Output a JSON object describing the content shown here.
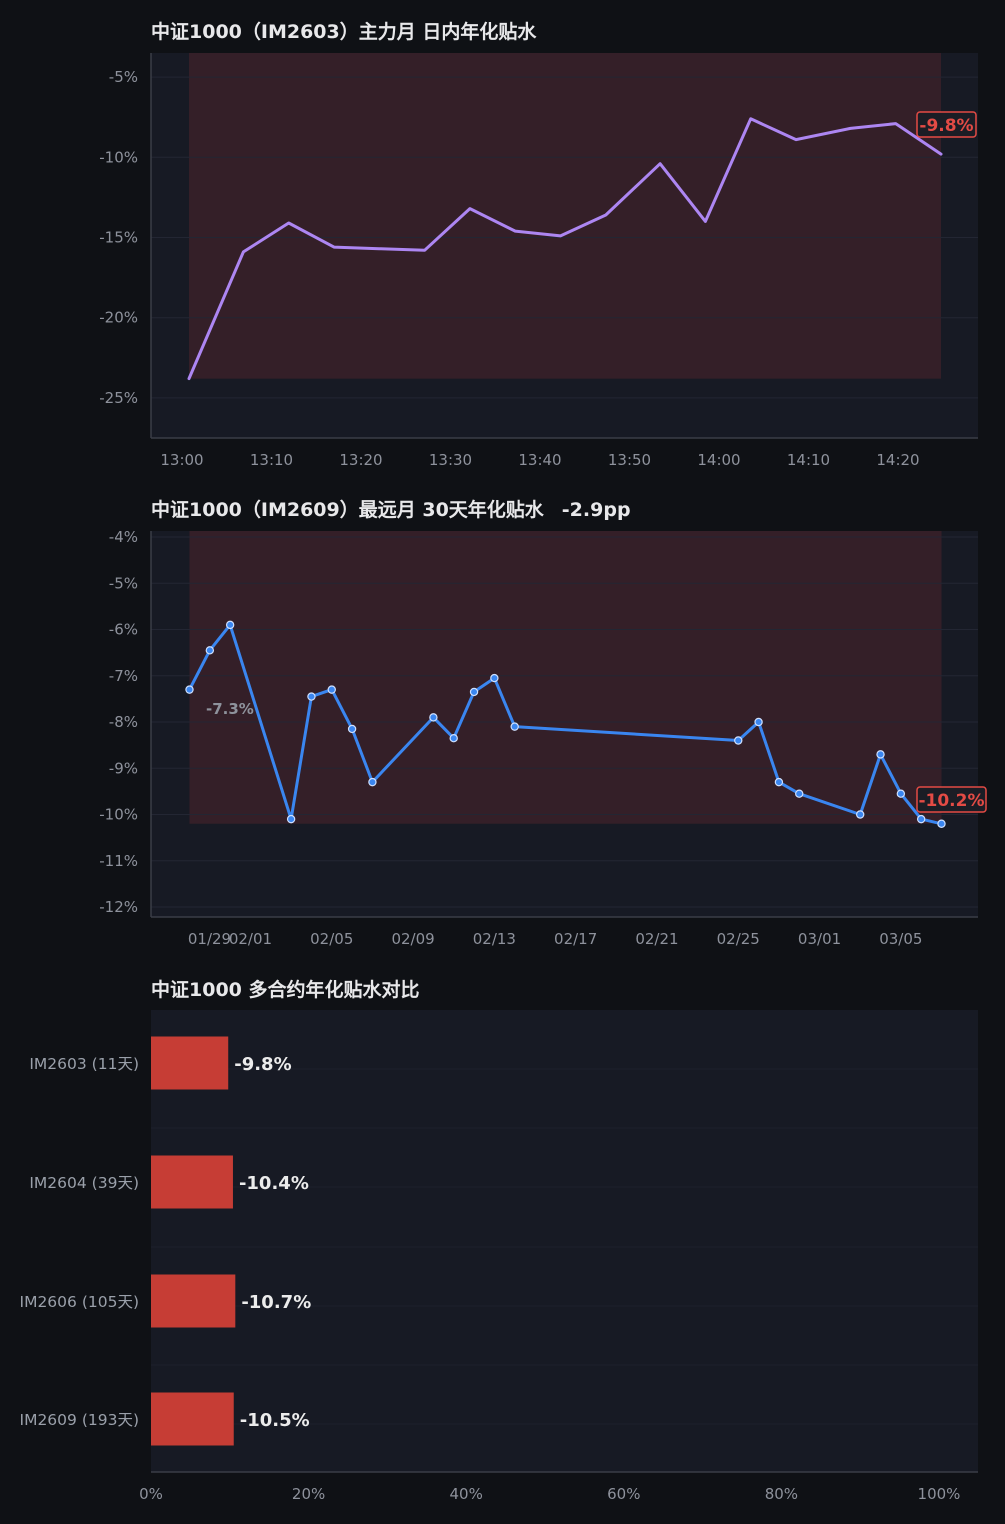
{
  "colors": {
    "background": "#0f1115",
    "plot_bg": "#171a24",
    "shade": "#3a2129",
    "axis": "#3a3d47",
    "tick_text": "#8e929c",
    "title_text": "#e8e8ea",
    "line1": "#ad86f2",
    "line2": "#3a86f0",
    "bar": "#c63d35",
    "end_label": "#e34b45"
  },
  "chart_data": [
    {
      "type": "line",
      "title": "中证1000（IM2603）主力月 日内年化贴水",
      "x_ticks": [
        "13:00",
        "13:10",
        "13:20",
        "13:30",
        "13:40",
        "13:50",
        "14:00",
        "14:10",
        "14:20"
      ],
      "x_minutes": [
        0,
        6,
        11,
        16,
        21,
        26,
        31,
        36,
        41,
        46,
        52,
        57,
        62,
        67,
        73,
        78,
        83
      ],
      "ylim": [
        -27.5,
        -3.5
      ],
      "y_ticks": [
        -5,
        -10,
        -15,
        -20,
        -25
      ],
      "y_tick_labels": [
        "-5%",
        "-10%",
        "-15%",
        "-20%",
        "-25%"
      ],
      "series": [
        {
          "values": [
            -23.8,
            -15.9,
            -14.1,
            -15.6,
            -15.7,
            -15.8,
            -13.2,
            -14.6,
            -14.9,
            -13.6,
            -10.4,
            -14.0,
            -7.6,
            -8.9,
            -8.2,
            -7.9,
            -9.8
          ]
        }
      ],
      "shade_range": [
        0,
        83
      ],
      "end_label": "-9.8%"
    },
    {
      "type": "line",
      "title": "中证1000（IM2609）最远月 30天年化贴水",
      "title_change": "-2.9pp",
      "x_ticks": [
        "01/29",
        "02/01",
        "02/05",
        "02/09",
        "02/13",
        "02/17",
        "02/21",
        "02/25",
        "03/01",
        "03/05"
      ],
      "x_days": [
        0,
        1,
        2,
        5,
        6,
        7,
        8,
        9,
        12,
        13,
        14,
        15,
        16,
        27,
        28,
        29,
        30,
        33,
        34,
        35,
        36,
        37
      ],
      "ylim": [
        -12.2,
        -3.8
      ],
      "y_ticks": [
        -4,
        -5,
        -6,
        -7,
        -8,
        -9,
        -10,
        -11,
        -12
      ],
      "y_tick_labels": [
        "-4%",
        "-5%",
        "-6%",
        "-7%",
        "-8%",
        "-9%",
        "-10%",
        "-11%",
        "-12%"
      ],
      "series": [
        {
          "values": [
            -7.3,
            -6.45,
            -5.9,
            -10.1,
            -7.45,
            -7.3,
            -8.15,
            -9.3,
            -7.9,
            -8.35,
            -7.35,
            -7.05,
            -8.1,
            -8.4,
            -8.0,
            -9.3,
            -9.55,
            -10.0,
            -8.7,
            -9.55,
            -10.1,
            -10.2
          ]
        }
      ],
      "shade_range": [
        0,
        37
      ],
      "start_label": "-7.3%",
      "end_label": "-10.2%"
    },
    {
      "type": "bar",
      "orientation": "horizontal",
      "title": "中证1000 多合约年化贴水对比",
      "categories": [
        "IM2603 (11天)",
        "IM2604 (39天)",
        "IM2606 (105天)",
        "IM2609 (193天)"
      ],
      "values": [
        9.8,
        10.4,
        10.7,
        10.5
      ],
      "value_labels": [
        "-9.8%",
        "-10.4%",
        "-10.7%",
        "-10.5%"
      ],
      "xlim": [
        0,
        105
      ],
      "x_ticks": [
        0,
        20,
        40,
        60,
        80,
        100
      ],
      "x_tick_labels": [
        "0%",
        "20%",
        "40%",
        "60%",
        "80%",
        "100%"
      ]
    }
  ]
}
